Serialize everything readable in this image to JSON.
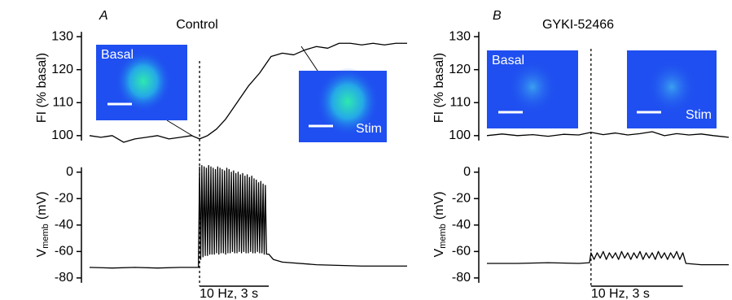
{
  "chart_data": [
    {
      "type": "line",
      "panel": "A",
      "title": "Control",
      "ylabel": "FI (% basal)",
      "color": "#000000",
      "insets": [
        {
          "label": "Basal"
        },
        {
          "label": "Stim"
        }
      ],
      "x": [
        0,
        0.5,
        1,
        1.5,
        2,
        2.5,
        3,
        3.5,
        4,
        4.5,
        4.85,
        5.2,
        5.6,
        6,
        6.5,
        7,
        7.5,
        8,
        8.5,
        9,
        9.5,
        10,
        10.5,
        11,
        11.5,
        12,
        12.5,
        13,
        13.5,
        14
      ],
      "values": [
        100,
        99.5,
        100,
        98,
        99,
        99.5,
        100,
        99,
        99.5,
        100,
        99,
        100,
        102,
        105,
        110,
        115,
        119,
        124,
        125,
        124.5,
        126,
        127,
        126.5,
        128,
        128,
        127.5,
        128,
        127.5,
        128,
        128
      ],
      "xlim": [
        0,
        14
      ],
      "ylim": [
        97,
        132
      ],
      "yticks": [
        100,
        110,
        120,
        130
      ]
    },
    {
      "type": "line",
      "ylabel": "V",
      "ylabel_sub": "memb",
      "ylabel_unit": "(mV)",
      "color": "#000000",
      "scalebar_label": "10 Hz, 3 s",
      "stimulus": [
        4.85,
        7.9
      ],
      "x": [
        0,
        1,
        2,
        3,
        4,
        4.8,
        4.85,
        4.9,
        4.95,
        5,
        5.05,
        5.1,
        5.15,
        5.2,
        5.25,
        5.3,
        5.35,
        5.4,
        5.45,
        5.5,
        5.55,
        5.6,
        5.65,
        5.7,
        5.75,
        5.8,
        5.85,
        5.9,
        5.95,
        6,
        6.05,
        6.1,
        6.15,
        6.2,
        6.25,
        6.3,
        6.35,
        6.4,
        6.45,
        6.5,
        6.55,
        6.6,
        6.65,
        6.7,
        6.75,
        6.8,
        6.85,
        6.9,
        6.95,
        7,
        7.05,
        7.1,
        7.15,
        7.2,
        7.25,
        7.3,
        7.35,
        7.4,
        7.45,
        7.5,
        7.55,
        7.6,
        7.65,
        7.7,
        7.75,
        7.8,
        7.9,
        8.1,
        8.5,
        10,
        12,
        14
      ],
      "values": [
        -72,
        -72.5,
        -72,
        -72.5,
        -72,
        -72,
        4,
        -66,
        5,
        -64,
        4,
        -63,
        3,
        -63,
        5,
        -62,
        4,
        -62,
        3,
        -62,
        2,
        -61,
        4,
        -62,
        3,
        -61,
        2,
        -61,
        1,
        -62,
        3,
        -61,
        2,
        -61,
        0,
        -60,
        1,
        -61,
        -1,
        -61,
        0,
        -60,
        -2,
        -61,
        -1,
        -60,
        -3,
        -61,
        -2,
        -61,
        -4,
        -60,
        -3,
        -61,
        -5,
        -61,
        -6,
        -60,
        -8,
        -61,
        -7,
        -61,
        -9,
        -62,
        -10,
        -62,
        -62,
        -66,
        -68,
        -70,
        -71,
        -71
      ],
      "xlim": [
        0,
        14
      ],
      "ylim": [
        -85,
        6
      ],
      "yticks": [
        0,
        -20,
        -40,
        -60,
        -80
      ]
    },
    {
      "type": "line",
      "panel": "B",
      "title": "GYKI-52466",
      "ylabel": "FI (% basal)",
      "color": "#000000",
      "insets": [
        {
          "label": "Basal"
        },
        {
          "label": "Stim"
        }
      ],
      "x": [
        0,
        0.5,
        1,
        1.5,
        2,
        2.5,
        3,
        3.4,
        3.8,
        4.2,
        4.6,
        5,
        5.4,
        5.8,
        6.2,
        6.6,
        7,
        7.4,
        7.9
      ],
      "values": [
        100,
        100.5,
        100,
        100.3,
        99.8,
        100.4,
        100.2,
        101,
        100.3,
        100.8,
        100.2,
        100.6,
        101.2,
        100,
        100.6,
        100.2,
        100.5,
        100,
        99.5
      ],
      "xlim": [
        0,
        7.9
      ],
      "ylim": [
        97,
        132
      ],
      "yticks": [
        100,
        110,
        120,
        130
      ]
    },
    {
      "type": "line",
      "ylabel": "V",
      "ylabel_sub": "memb",
      "ylabel_unit": "(mV)",
      "color": "#000000",
      "scalebar_label": "10 Hz, 3 s",
      "stimulus": [
        3.4,
        6.4
      ],
      "x": [
        0,
        1,
        2,
        3,
        3.35,
        3.4,
        3.5,
        3.6,
        3.7,
        3.8,
        3.9,
        4,
        4.1,
        4.2,
        4.3,
        4.4,
        4.5,
        4.6,
        4.7,
        4.8,
        4.9,
        5,
        5.1,
        5.2,
        5.3,
        5.4,
        5.5,
        5.6,
        5.7,
        5.8,
        5.9,
        6,
        6.1,
        6.2,
        6.3,
        6.4,
        6.5,
        7,
        7.9
      ],
      "values": [
        -69,
        -69,
        -68.5,
        -69,
        -68.5,
        -61,
        -66,
        -61,
        -65,
        -60,
        -66,
        -61,
        -65,
        -61,
        -66,
        -60,
        -65,
        -61,
        -66,
        -61,
        -65,
        -60,
        -66,
        -61,
        -65,
        -61,
        -66,
        -60,
        -65,
        -61,
        -66,
        -61,
        -65,
        -60,
        -66,
        -61,
        -69,
        -70,
        -70
      ],
      "xlim": [
        0,
        7.9
      ],
      "ylim": [
        -85,
        6
      ],
      "yticks": [
        0,
        -20,
        -40,
        -60,
        -80
      ]
    }
  ]
}
